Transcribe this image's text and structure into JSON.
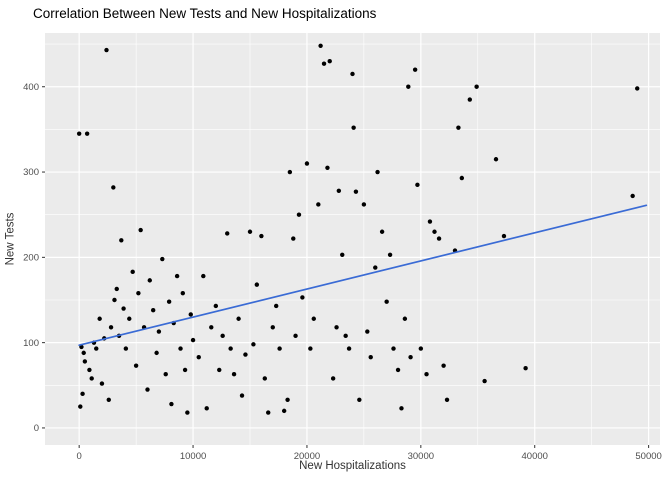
{
  "chart_data": {
    "type": "scatter",
    "title": "Correlation Between New Tests and New Hospitalizations",
    "xlabel": "New Hospitalizations",
    "ylabel": "New Tests",
    "x_ticks": [
      0,
      10000,
      20000,
      30000,
      40000,
      50000
    ],
    "y_ticks": [
      0,
      100,
      200,
      300,
      400
    ],
    "xlim": [
      -3000,
      51000
    ],
    "ylim": [
      -20,
      463
    ],
    "legend": "none",
    "grid": "major and minor white gridlines on gray panel",
    "panel_bg": "#EBEBEB",
    "grid_color": "#FFFFFF",
    "tick_label_color": "#4D4D4D",
    "tick_mark_color": "#333333",
    "point_color": "#000000",
    "trend_color": "#3A6BD5",
    "trend_line": {
      "x1": 0,
      "y1": 97,
      "x2": 49800,
      "y2": 261
    },
    "points": [
      [
        0,
        345
      ],
      [
        700,
        345
      ],
      [
        200,
        95
      ],
      [
        400,
        88
      ],
      [
        500,
        78
      ],
      [
        100,
        25
      ],
      [
        300,
        40
      ],
      [
        900,
        68
      ],
      [
        1100,
        58
      ],
      [
        1300,
        100
      ],
      [
        1500,
        93
      ],
      [
        1800,
        128
      ],
      [
        2000,
        52
      ],
      [
        2200,
        105
      ],
      [
        2400,
        443
      ],
      [
        2600,
        33
      ],
      [
        2800,
        118
      ],
      [
        3000,
        282
      ],
      [
        3100,
        150
      ],
      [
        3300,
        163
      ],
      [
        3500,
        108
      ],
      [
        3700,
        220
      ],
      [
        3900,
        140
      ],
      [
        4100,
        93
      ],
      [
        4400,
        128
      ],
      [
        4700,
        183
      ],
      [
        5000,
        73
      ],
      [
        5200,
        158
      ],
      [
        5400,
        232
      ],
      [
        5700,
        118
      ],
      [
        6000,
        45
      ],
      [
        6200,
        173
      ],
      [
        6500,
        138
      ],
      [
        6800,
        88
      ],
      [
        7000,
        113
      ],
      [
        7300,
        198
      ],
      [
        7600,
        63
      ],
      [
        7900,
        148
      ],
      [
        8100,
        28
      ],
      [
        8300,
        123
      ],
      [
        8600,
        178
      ],
      [
        8900,
        93
      ],
      [
        9100,
        158
      ],
      [
        9300,
        68
      ],
      [
        9500,
        18
      ],
      [
        9800,
        133
      ],
      [
        10000,
        103
      ],
      [
        10500,
        83
      ],
      [
        10900,
        178
      ],
      [
        11200,
        23
      ],
      [
        11600,
        118
      ],
      [
        12000,
        143
      ],
      [
        12300,
        68
      ],
      [
        12600,
        108
      ],
      [
        13000,
        228
      ],
      [
        13300,
        93
      ],
      [
        13600,
        63
      ],
      [
        14000,
        128
      ],
      [
        14300,
        38
      ],
      [
        14600,
        86
      ],
      [
        15000,
        230
      ],
      [
        15300,
        98
      ],
      [
        15600,
        168
      ],
      [
        16000,
        225
      ],
      [
        16300,
        58
      ],
      [
        16600,
        18
      ],
      [
        17000,
        118
      ],
      [
        17300,
        143
      ],
      [
        17600,
        93
      ],
      [
        18000,
        20
      ],
      [
        18300,
        33
      ],
      [
        18500,
        300
      ],
      [
        18800,
        222
      ],
      [
        19000,
        108
      ],
      [
        19300,
        250
      ],
      [
        19600,
        153
      ],
      [
        20000,
        310
      ],
      [
        20300,
        93
      ],
      [
        20600,
        128
      ],
      [
        21000,
        262
      ],
      [
        21200,
        448
      ],
      [
        21500,
        427
      ],
      [
        21800,
        305
      ],
      [
        22000,
        430
      ],
      [
        22300,
        58
      ],
      [
        22600,
        118
      ],
      [
        22800,
        278
      ],
      [
        23100,
        203
      ],
      [
        23400,
        108
      ],
      [
        23700,
        93
      ],
      [
        24000,
        415
      ],
      [
        24100,
        352
      ],
      [
        24300,
        277
      ],
      [
        24600,
        33
      ],
      [
        25000,
        262
      ],
      [
        25300,
        113
      ],
      [
        25600,
        83
      ],
      [
        26000,
        188
      ],
      [
        26200,
        300
      ],
      [
        26600,
        230
      ],
      [
        27000,
        148
      ],
      [
        27300,
        203
      ],
      [
        27600,
        93
      ],
      [
        28000,
        68
      ],
      [
        28300,
        23
      ],
      [
        28600,
        128
      ],
      [
        28900,
        400
      ],
      [
        29100,
        83
      ],
      [
        29500,
        420
      ],
      [
        29700,
        285
      ],
      [
        30000,
        93
      ],
      [
        30500,
        63
      ],
      [
        30800,
        242
      ],
      [
        31200,
        230
      ],
      [
        31600,
        222
      ],
      [
        32000,
        73
      ],
      [
        32300,
        33
      ],
      [
        33000,
        208
      ],
      [
        33300,
        352
      ],
      [
        33600,
        293
      ],
      [
        34300,
        385
      ],
      [
        34900,
        400
      ],
      [
        35600,
        55
      ],
      [
        36600,
        315
      ],
      [
        37300,
        225
      ],
      [
        39200,
        70
      ],
      [
        48600,
        272
      ],
      [
        49000,
        398
      ]
    ]
  }
}
